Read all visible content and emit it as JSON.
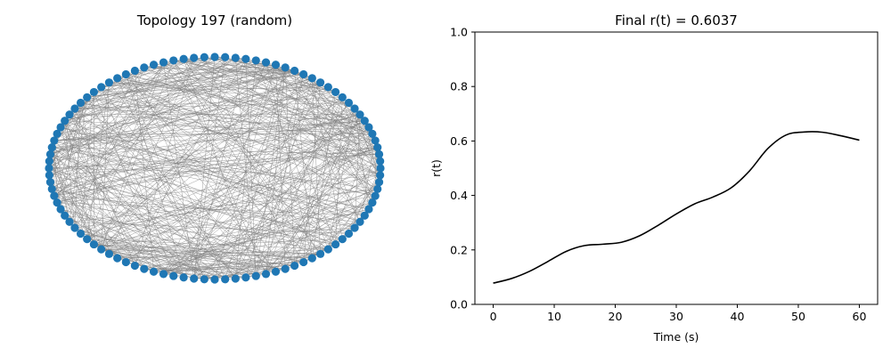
{
  "chart_data": [
    {
      "type": "network",
      "title": "Topology 197 (random)",
      "node_count": 100,
      "layout": "circular",
      "node_color": "#1f77b4",
      "edge_color": "#808080"
    },
    {
      "type": "line",
      "title": "Final r(t) = 0.6037",
      "xlabel": "Time (s)",
      "ylabel": "r(t)",
      "xlim": [
        -3,
        63
      ],
      "ylim": [
        0.0,
        1.0
      ],
      "xticks": [
        0,
        10,
        20,
        30,
        40,
        50,
        60
      ],
      "yticks": [
        0.0,
        0.2,
        0.4,
        0.6,
        0.8,
        1.0
      ],
      "grid": false,
      "line_color": "#000000",
      "series": [
        {
          "x": [
            0,
            3,
            6,
            9,
            12,
            15,
            18,
            21,
            24,
            27,
            30,
            33,
            36,
            39,
            42,
            45,
            48,
            51,
            54,
            57,
            60
          ],
          "values": [
            0.078,
            0.095,
            0.122,
            0.158,
            0.195,
            0.216,
            0.221,
            0.228,
            0.252,
            0.29,
            0.332,
            0.369,
            0.394,
            0.428,
            0.49,
            0.572,
            0.622,
            0.633,
            0.632,
            0.619,
            0.603
          ]
        }
      ]
    }
  ]
}
